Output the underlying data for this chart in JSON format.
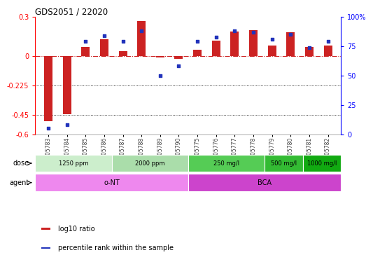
{
  "title": "GDS2051 / 22020",
  "samples": [
    "GSM105783",
    "GSM105784",
    "GSM105785",
    "GSM105786",
    "GSM105787",
    "GSM105788",
    "GSM105789",
    "GSM105790",
    "GSM105775",
    "GSM105776",
    "GSM105777",
    "GSM105778",
    "GSM105779",
    "GSM105780",
    "GSM105781",
    "GSM105782"
  ],
  "log10_ratio": [
    -0.5,
    -0.445,
    0.07,
    0.13,
    0.04,
    0.27,
    -0.01,
    -0.02,
    0.05,
    0.12,
    0.19,
    0.2,
    0.08,
    0.18,
    0.07,
    0.08
  ],
  "percentile": [
    5,
    8,
    79,
    84,
    79,
    88,
    50,
    58,
    79,
    83,
    88,
    87,
    81,
    85,
    74,
    79
  ],
  "ylim_left": [
    -0.6,
    0.3
  ],
  "ylim_right": [
    0,
    100
  ],
  "yticks_left": [
    -0.6,
    -0.45,
    -0.225,
    0.0,
    0.3
  ],
  "yticks_right": [
    0,
    25,
    50,
    75,
    100
  ],
  "ytick_labels_left": [
    "-0.6",
    "-0.45",
    "-0.225",
    "0",
    "0.3"
  ],
  "ytick_labels_right": [
    "0",
    "25",
    "50",
    "75",
    "100%"
  ],
  "hlines": [
    -0.225,
    -0.45
  ],
  "bar_color": "#cc2222",
  "dot_color": "#2233bb",
  "background_color": "#ffffff",
  "dose_groups": [
    {
      "label": "1250 ppm",
      "start": 0,
      "end": 4,
      "color": "#cceecc"
    },
    {
      "label": "2000 ppm",
      "start": 4,
      "end": 8,
      "color": "#aaddaa"
    },
    {
      "label": "250 mg/l",
      "start": 8,
      "end": 12,
      "color": "#55cc55"
    },
    {
      "label": "500 mg/l",
      "start": 12,
      "end": 14,
      "color": "#33bb33"
    },
    {
      "label": "1000 mg/l",
      "start": 14,
      "end": 16,
      "color": "#11aa11"
    }
  ],
  "agent_groups": [
    {
      "label": "o-NT",
      "start": 0,
      "end": 8,
      "color": "#ee88ee"
    },
    {
      "label": "BCA",
      "start": 8,
      "end": 16,
      "color": "#cc44cc"
    }
  ],
  "legend_items": [
    {
      "color": "#cc2222",
      "label": "log10 ratio"
    },
    {
      "color": "#2233bb",
      "label": "percentile rank within the sample"
    }
  ]
}
